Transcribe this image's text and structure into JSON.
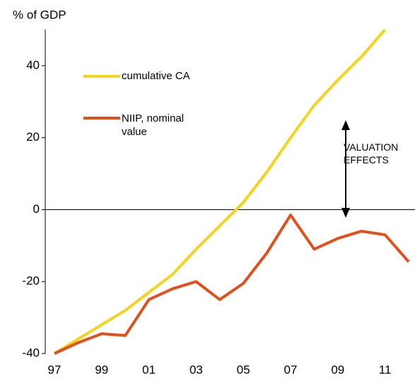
{
  "chart_data": {
    "type": "line",
    "y_label": "% of GDP",
    "categories": [
      "97",
      null,
      "99",
      null,
      "01",
      null,
      "03",
      null,
      "05",
      null,
      "07",
      null,
      "09",
      null,
      "11",
      null
    ],
    "series": [
      {
        "name": "cumulative CA",
        "color": "#f7d21e",
        "values": [
          -40,
          -36,
          -32,
          -28,
          -23,
          -18,
          -11,
          -4.5,
          2,
          10.5,
          20,
          29,
          36,
          42.5,
          50,
          null
        ]
      },
      {
        "name": "NIIP, nominal value",
        "color": "#e2501b",
        "values": [
          -40,
          -37,
          -34.5,
          -35,
          -25,
          -22,
          -20,
          -25,
          -20.5,
          -12,
          -1.5,
          -11,
          -8,
          -6,
          -7,
          -14.5
        ]
      }
    ],
    "ylim": [
      -40,
      50
    ],
    "yticks": [
      -40,
      -20,
      0,
      20,
      40
    ],
    "annotation": "VALUATION EFFECTS"
  }
}
